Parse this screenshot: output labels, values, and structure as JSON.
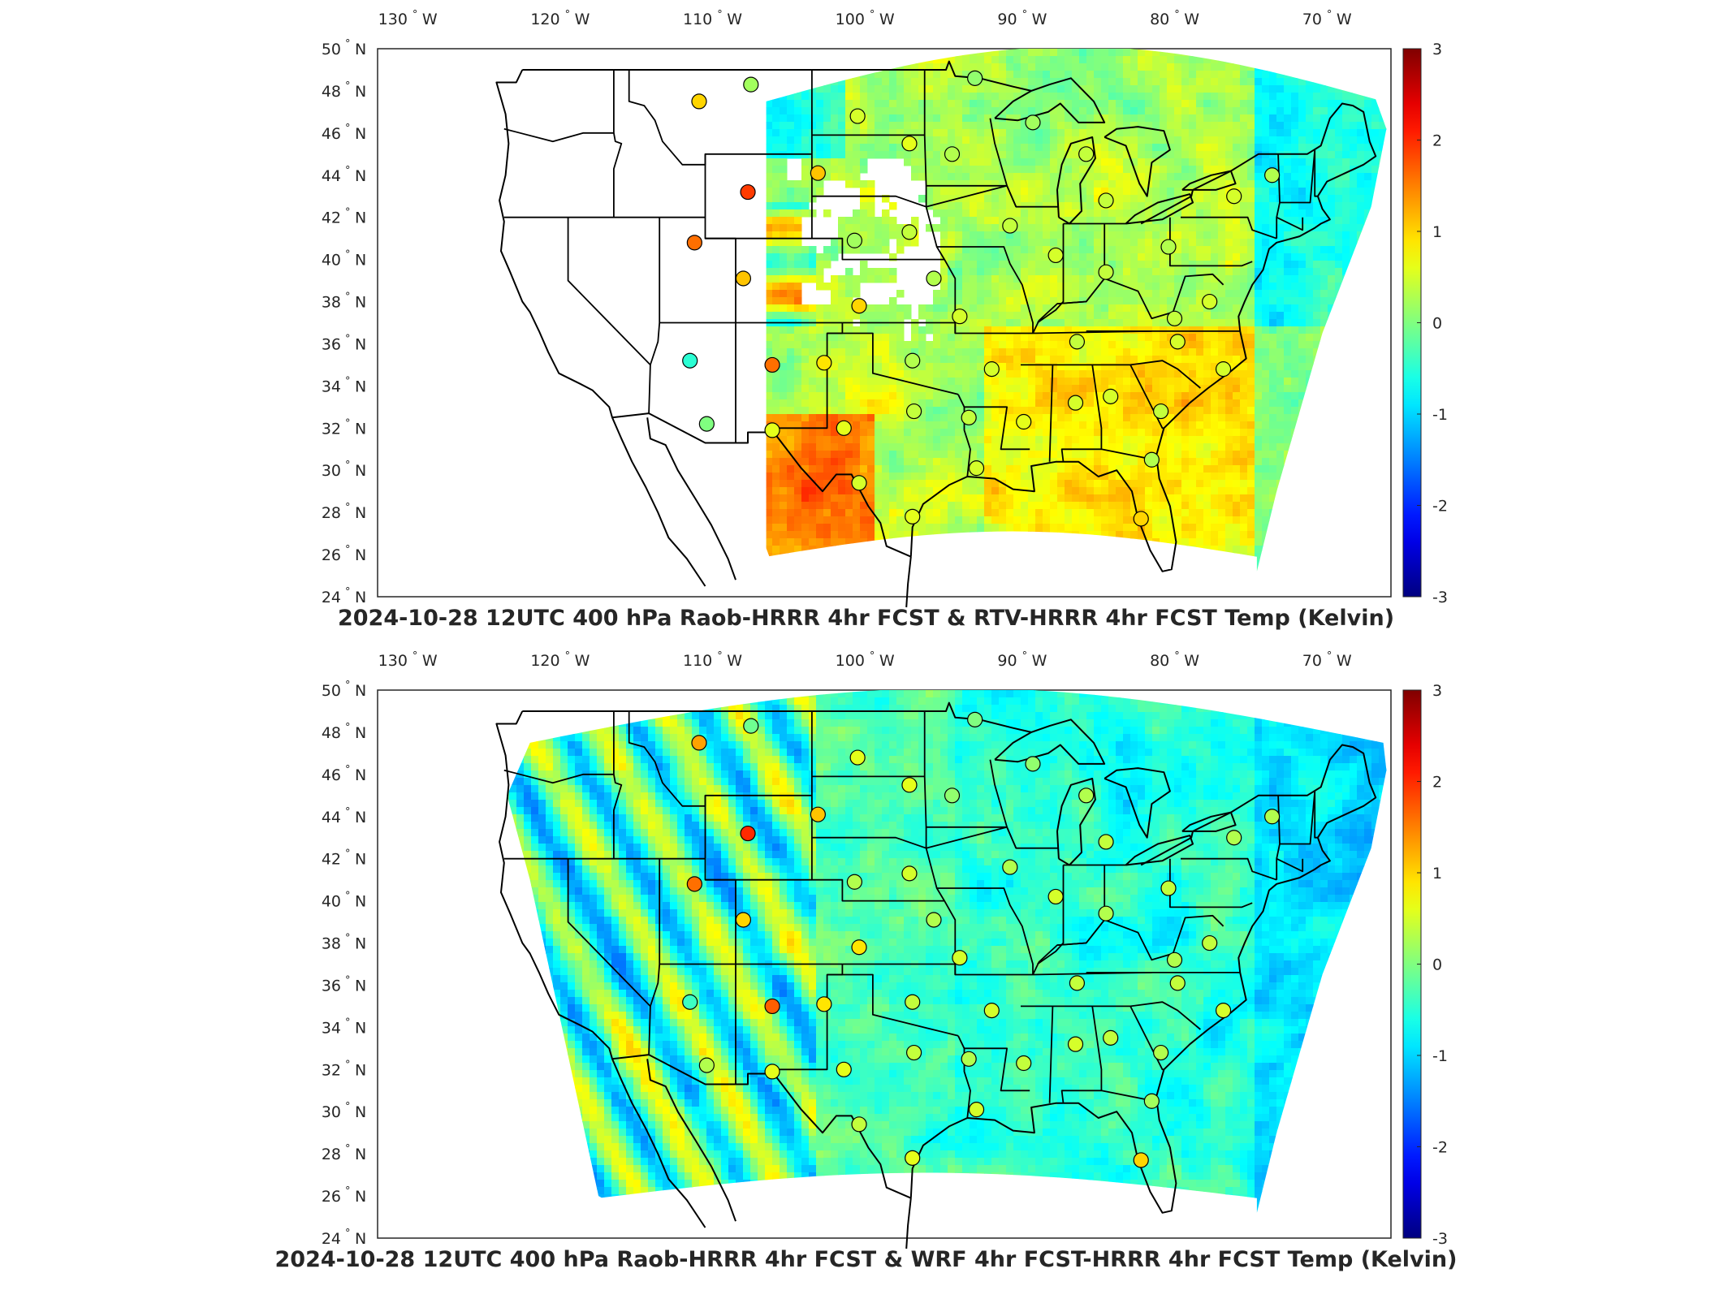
{
  "figure": {
    "panels": [
      {
        "id": "top",
        "title": "2024-10-28 12UTC 400 hPa Raob-HRRR 4hr FCST & RTV-HRRR 4hr FCST Temp (Kelvin)"
      },
      {
        "id": "bottom",
        "title": "2024-10-28 12UTC 400 hPa Raob-HRRR 4hr FCST & WRF 4hr FCST-HRRR 4hr FCST Temp (Kelvin)"
      }
    ],
    "lon_labels": [
      {
        "value": 130,
        "text": "130",
        "hem": "W"
      },
      {
        "value": 120,
        "text": "120",
        "hem": "W"
      },
      {
        "value": 110,
        "text": "110",
        "hem": "W"
      },
      {
        "value": 100,
        "text": "100",
        "hem": "W"
      },
      {
        "value": 90,
        "text": "90",
        "hem": "W"
      },
      {
        "value": 80,
        "text": "80",
        "hem": "W"
      },
      {
        "value": 70,
        "text": "70",
        "hem": "W"
      }
    ],
    "lat_labels": [
      {
        "value": 50,
        "text": "50",
        "hem": "N"
      },
      {
        "value": 48,
        "text": "48",
        "hem": "N"
      },
      {
        "value": 46,
        "text": "46",
        "hem": "N"
      },
      {
        "value": 44,
        "text": "44",
        "hem": "N"
      },
      {
        "value": 42,
        "text": "42",
        "hem": "N"
      },
      {
        "value": 40,
        "text": "40",
        "hem": "N"
      },
      {
        "value": 38,
        "text": "38",
        "hem": "N"
      },
      {
        "value": 36,
        "text": "36",
        "hem": "N"
      },
      {
        "value": 34,
        "text": "34",
        "hem": "N"
      },
      {
        "value": 32,
        "text": "32",
        "hem": "N"
      },
      {
        "value": 30,
        "text": "30",
        "hem": "N"
      },
      {
        "value": 28,
        "text": "28",
        "hem": "N"
      },
      {
        "value": 26,
        "text": "26",
        "hem": "N"
      },
      {
        "value": 24,
        "text": "24",
        "hem": "N"
      }
    ],
    "colorbar": {
      "min": -3,
      "max": 3,
      "ticks": [
        "3",
        "2",
        "1",
        "0",
        "-1",
        "-2",
        "-3"
      ],
      "colormap": "jet"
    },
    "colors": {
      "land_outline": "#000000",
      "no_data": "#ffffff",
      "frame": "#262626"
    }
  }
}
